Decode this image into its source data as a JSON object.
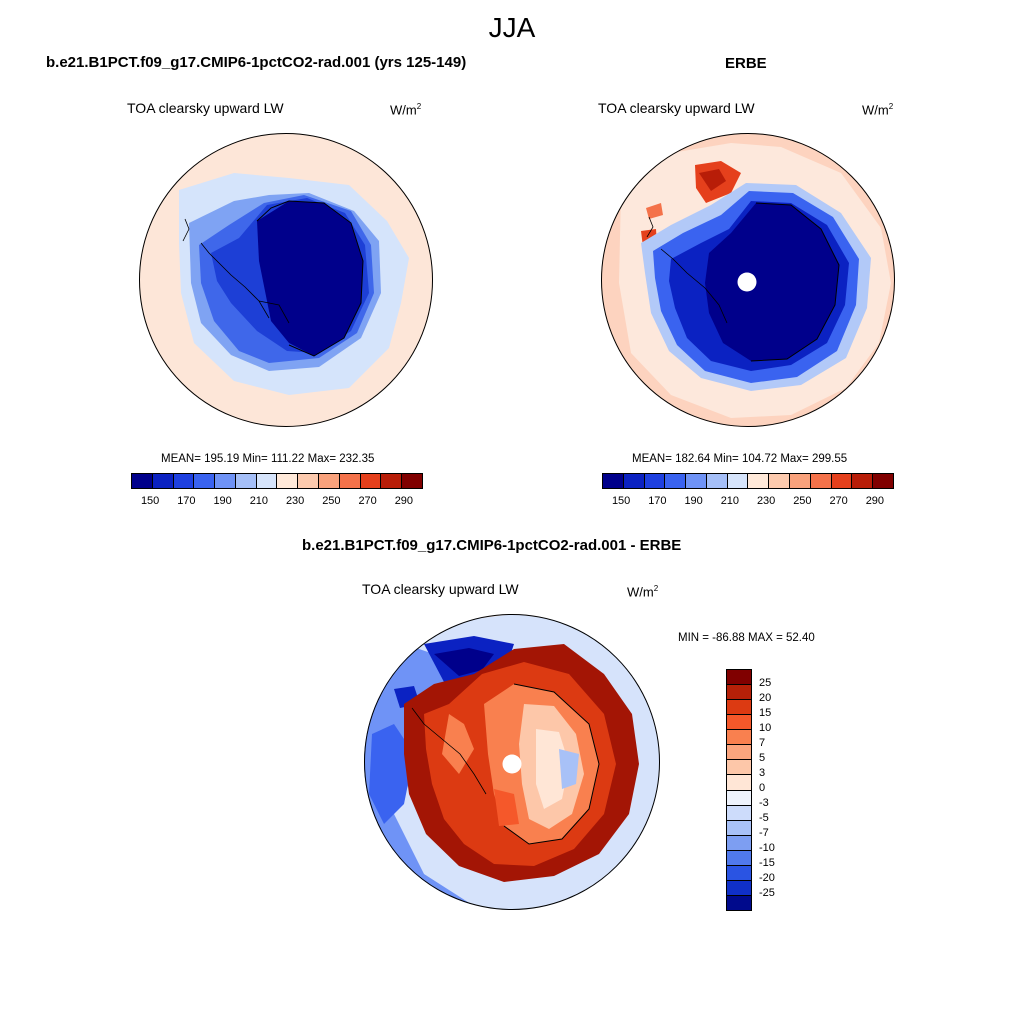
{
  "figure": {
    "title": "JJA",
    "units_base": "W/m",
    "units_exp": "2"
  },
  "panels": [
    {
      "title": "b.e21.B1PCT.f09_g17.CMIP6-1pctCO2-rad.001 (yrs 125-149)",
      "variable": "TOA clearsky upward LW",
      "stats": "MEAN= 195.19  Min= 111.22  Max= 232.35",
      "field_range": {
        "min": 111.22,
        "max": 232.35,
        "mean": 195.19
      },
      "has_polar_hole": false
    },
    {
      "title": "ERBE",
      "variable": "TOA clearsky upward LW",
      "stats": "MEAN= 182.64  Min= 104.72  Max= 299.55",
      "field_range": {
        "min": 104.72,
        "max": 299.55,
        "mean": 182.64
      },
      "has_polar_hole": true
    },
    {
      "title": "b.e21.B1PCT.f09_g17.CMIP6-1pctCO2-rad.001 - ERBE",
      "variable": "TOA clearsky upward LW",
      "stats": "MIN = -86.88 MAX =  52.40",
      "field_range": {
        "min": -86.88,
        "max": 52.4
      },
      "has_polar_hole": true
    }
  ],
  "abs_colorbar": {
    "tick_labels": [
      "150",
      "170",
      "190",
      "210",
      "230",
      "250",
      "270",
      "290"
    ],
    "colors": [
      "#00008b",
      "#0b22c2",
      "#1e40e0",
      "#3a63f0",
      "#6f93f6",
      "#a5bff8",
      "#d6e4fb",
      "#ffe9d9",
      "#fccaae",
      "#f9a27c",
      "#f4724a",
      "#e5401c",
      "#b81d08",
      "#800000"
    ]
  },
  "diff_colorbar": {
    "levels_top_to_bottom": [
      "25",
      "20",
      "15",
      "10",
      "7",
      "5",
      "3",
      "0",
      "-3",
      "-5",
      "-7",
      "-10",
      "-15",
      "-20",
      "-25"
    ],
    "colors_top_to_bottom": [
      "#800000",
      "#b52008",
      "#dc3a12",
      "#f5582a",
      "#f9804f",
      "#fba57e",
      "#fdc7a9",
      "#ffe6d6",
      "#eef3fc",
      "#cddcfb",
      "#a8c1f7",
      "#7d9ef2",
      "#5079ec",
      "#2a54e3",
      "#1030c8",
      "#000a8c"
    ]
  },
  "colors": {
    "deep_blue": "#00008b",
    "dark_red": "#a31505",
    "coast_line": "#000000"
  }
}
